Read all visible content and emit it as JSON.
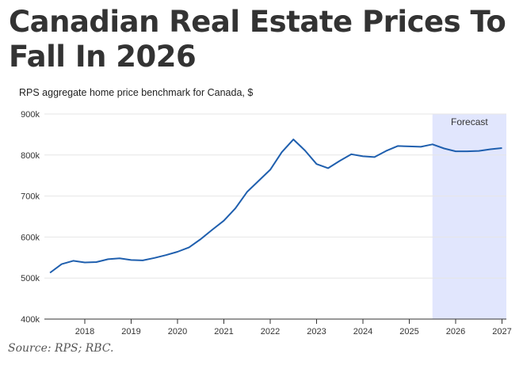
{
  "page": {
    "title": "Canadian Real Estate Prices To Fall In 2026",
    "source": "Source: RPS; RBC."
  },
  "colors": {
    "line": "#1f5fae",
    "forecast_band": "#e1e6fd",
    "grid": "#e6e6e6",
    "axis": "#333333",
    "title": "#333333"
  },
  "chart_data": {
    "type": "line",
    "title": "Canadian Real Estate Prices To Fall In 2026",
    "subtitle": "RPS aggregate home price benchmark for Canada, $",
    "xlabel": "",
    "ylabel": "",
    "xlim": [
      2017.25,
      2027.1
    ],
    "ylim": [
      400000,
      900000
    ],
    "grid": true,
    "y_ticks": [
      400000,
      500000,
      600000,
      700000,
      800000,
      900000
    ],
    "y_tick_labels": [
      "400k",
      "500k",
      "600k",
      "700k",
      "800k",
      "900k"
    ],
    "x_ticks": [
      2018,
      2019,
      2020,
      2021,
      2022,
      2023,
      2024,
      2025,
      2026,
      2027
    ],
    "x_tick_labels": [
      "2018",
      "2019",
      "2020",
      "2021",
      "2022",
      "2023",
      "2024",
      "2025",
      "2026",
      "2027"
    ],
    "forecast": {
      "label": "Forecast",
      "start": 2025.5,
      "end": 2027.1
    },
    "series": [
      {
        "name": "RPS aggregate home price benchmark",
        "x": [
          2017.25,
          2017.5,
          2017.75,
          2018.0,
          2018.25,
          2018.5,
          2018.75,
          2019.0,
          2019.25,
          2019.5,
          2019.75,
          2020.0,
          2020.25,
          2020.5,
          2020.75,
          2021.0,
          2021.25,
          2021.5,
          2021.75,
          2022.0,
          2022.25,
          2022.5,
          2022.75,
          2023.0,
          2023.25,
          2023.5,
          2023.75,
          2024.0,
          2024.25,
          2024.5,
          2024.75,
          2025.0,
          2025.25,
          2025.5,
          2025.75,
          2026.0,
          2026.25,
          2026.5,
          2026.75,
          2027.0
        ],
        "values": [
          513000,
          534000,
          542000,
          538000,
          539000,
          546000,
          548000,
          544000,
          543000,
          549000,
          556000,
          564000,
          575000,
          595000,
          618000,
          640000,
          670000,
          710000,
          737000,
          764000,
          807000,
          838000,
          811000,
          778000,
          768000,
          786000,
          802000,
          797000,
          795000,
          810000,
          822000,
          821000,
          820000,
          826000,
          816000,
          809000,
          809000,
          810000,
          814000,
          817000
        ]
      }
    ]
  }
}
